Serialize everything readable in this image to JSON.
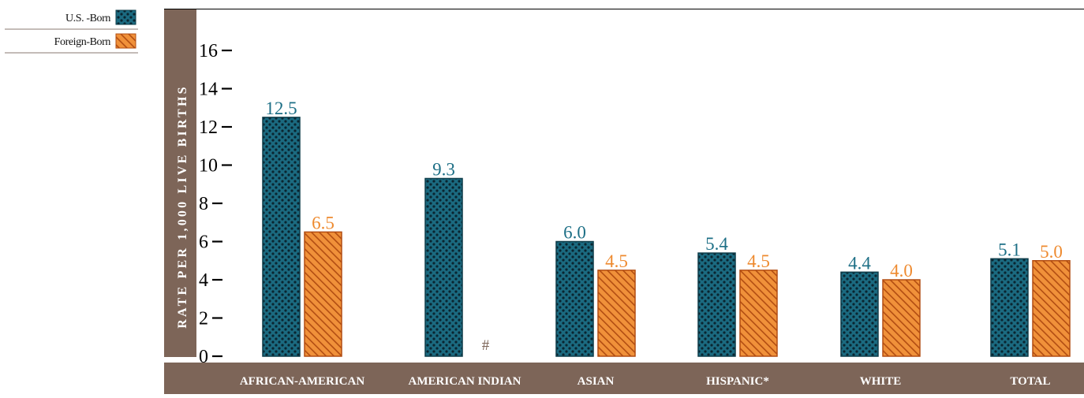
{
  "chart_data": {
    "type": "bar",
    "ylabel": "RATE PER 1,000 LIVE BIRTHS",
    "ylim": [
      0,
      17
    ],
    "yticks": [
      0,
      2,
      4,
      6,
      8,
      10,
      12,
      14,
      16
    ],
    "categories": [
      "AFRICAN-AMERICAN",
      "AMERICAN INDIAN",
      "ASIAN",
      "HISPANIC*",
      "WHITE",
      "TOTAL"
    ],
    "series": [
      {
        "name": "U.S. -Born",
        "values": [
          12.5,
          9.3,
          6.0,
          5.4,
          4.4,
          5.1
        ],
        "labels": [
          "12.5",
          "9.3",
          "6.0",
          "5.4",
          "4.4",
          "5.1"
        ]
      },
      {
        "name": "Foreign-Born",
        "values": [
          6.5,
          null,
          4.5,
          4.5,
          4.0,
          5.0
        ],
        "labels": [
          "6.5",
          "#",
          "4.5",
          "4.5",
          "4.0",
          "5.0"
        ]
      }
    ],
    "legend_position": "top-left",
    "grid": false,
    "colors": {
      "us_born": "#1b6a80",
      "us_born_dots": "#0a2530",
      "foreign_born": "#f0913a",
      "foreign_born_stripe": "#b24d12",
      "brown_band": "#7d6558",
      "us_label": "#1d6f86",
      "foreign_label": "#ee8a2f",
      "tick_text": "#000000"
    }
  }
}
